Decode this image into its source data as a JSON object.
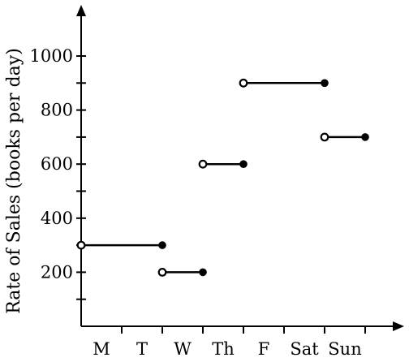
{
  "chart_data": {
    "type": "line",
    "ylabel": "Rate of Sales (books per day)",
    "xlabel": "",
    "x_tick_labels": [
      "M",
      "T",
      "W",
      "Th",
      "F",
      "Sat",
      "Sun"
    ],
    "y_tick_labels": [
      "200",
      "400",
      "600",
      "800",
      "1000"
    ],
    "y_labeled_ticks": [
      200,
      400,
      600,
      800,
      1000
    ],
    "y_minor_ticks": [
      100,
      300,
      500,
      700,
      900
    ],
    "ylim": [
      0,
      1100
    ],
    "xlim": [
      0,
      7
    ],
    "grid": false,
    "segments": [
      {
        "x_start": 0,
        "x_end": 2,
        "value": 300,
        "start_open": true,
        "end_closed": true
      },
      {
        "x_start": 2,
        "x_end": 3,
        "value": 200,
        "start_open": true,
        "end_closed": true
      },
      {
        "x_start": 3,
        "x_end": 4,
        "value": 600,
        "start_open": true,
        "end_closed": true
      },
      {
        "x_start": 4,
        "x_end": 6,
        "value": 900,
        "start_open": true,
        "end_closed": true
      },
      {
        "x_start": 6,
        "x_end": 7,
        "value": 700,
        "start_open": true,
        "end_closed": true
      }
    ]
  }
}
